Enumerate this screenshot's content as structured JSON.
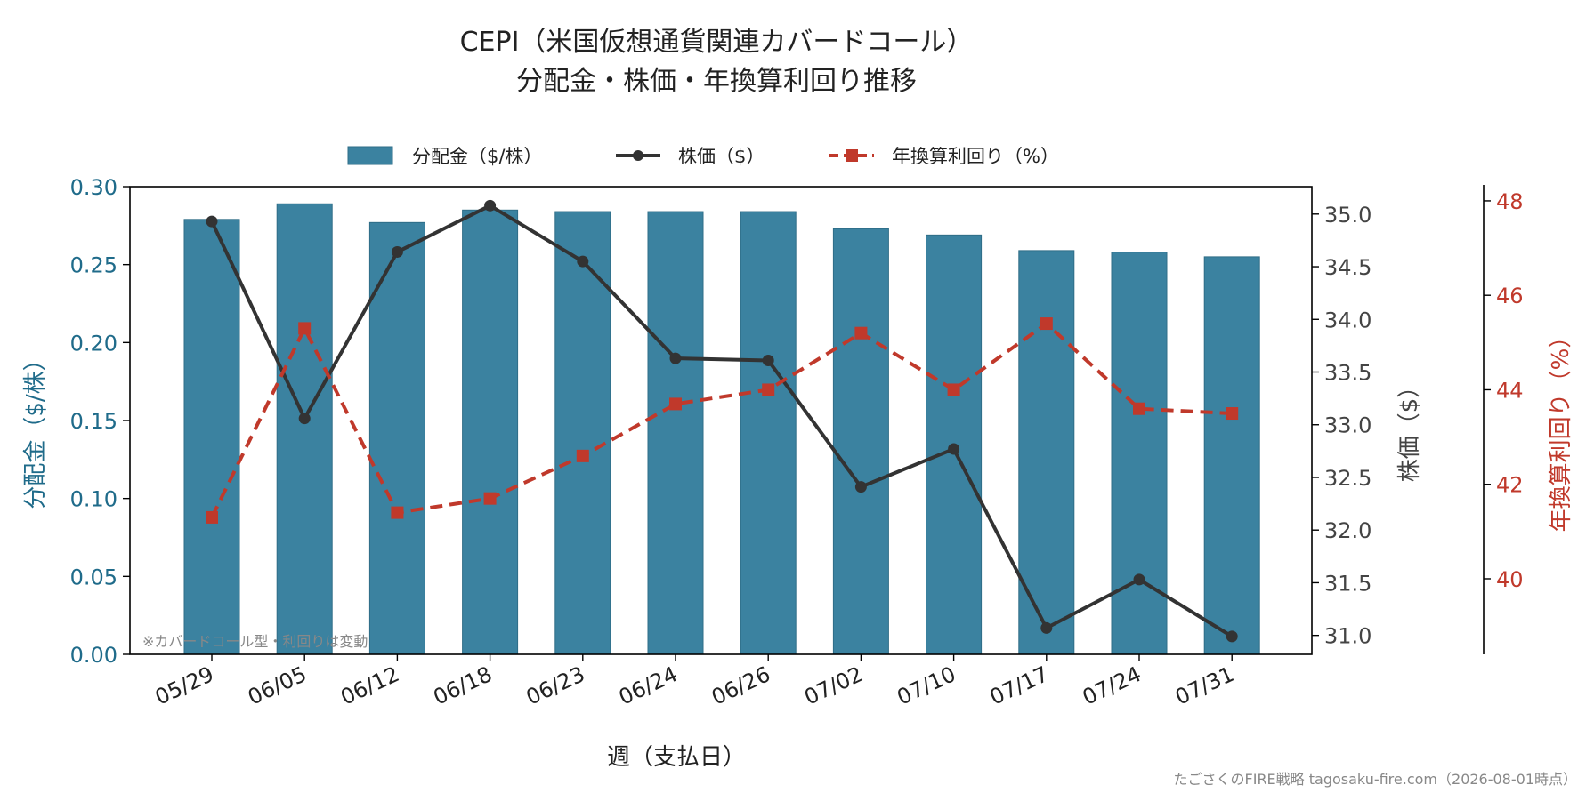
{
  "colors": {
    "bar": "#3b82a0",
    "bar_edge": "#2f6d87",
    "price": "#333333",
    "yield": "#c0392b",
    "left_axis": "#1f6b8a",
    "right_axis_price": "#444444",
    "right_axis_yield": "#c0392b"
  },
  "chart_data": {
    "type": "bar",
    "title": "CEPI（米国仮想通貨関連カバードコール）",
    "subtitle": "分配金・株価・年換算利回り推移",
    "xlabel": "週（支払日）",
    "categories": [
      "05/29",
      "06/05",
      "06/12",
      "06/18",
      "06/23",
      "06/24",
      "06/26",
      "07/02",
      "07/10",
      "07/17",
      "07/24",
      "07/31"
    ],
    "series": [
      {
        "name": "分配金（$/株）",
        "type": "bar",
        "axis": "left",
        "values": [
          0.279,
          0.289,
          0.277,
          0.285,
          0.284,
          0.284,
          0.284,
          0.273,
          0.269,
          0.259,
          0.258,
          0.255
        ]
      },
      {
        "name": "株価（$）",
        "type": "line",
        "axis": "right",
        "marker": "circle",
        "values": [
          34.93,
          33.06,
          34.64,
          35.08,
          34.55,
          33.63,
          33.61,
          32.41,
          32.77,
          31.07,
          31.53,
          30.99
        ]
      },
      {
        "name": "年換算利回り（%）",
        "type": "line",
        "axis": "right2",
        "marker": "square",
        "linestyle": "dashed",
        "values": [
          41.3,
          45.3,
          41.4,
          41.7,
          42.6,
          43.7,
          44.0,
          45.2,
          44.0,
          45.4,
          43.6,
          43.5
        ]
      }
    ],
    "axes": {
      "left": {
        "label": "分配金（$/株）",
        "ylim": [
          0,
          0.3
        ],
        "ticks": [
          "0.00",
          "0.05",
          "0.10",
          "0.15",
          "0.20",
          "0.25",
          "0.30"
        ]
      },
      "right": {
        "label": "株価（$）",
        "ylim": [
          30.82,
          35.26
        ],
        "ticks": [
          "31.0",
          "31.5",
          "32.0",
          "32.5",
          "33.0",
          "33.5",
          "34.0",
          "34.5",
          "35.0"
        ]
      },
      "right2": {
        "label": "年換算利回り（%）",
        "ylim": [
          38.4,
          48.3
        ],
        "ticks": [
          "40",
          "42",
          "44",
          "46",
          "48"
        ]
      }
    },
    "legend_position": "top-center",
    "grid": false
  },
  "annotation": "※カバードコール型・利回りは変動",
  "footer": "たごさくのFIRE戦略 tagosaku-fire.com（2026-08-01時点）"
}
